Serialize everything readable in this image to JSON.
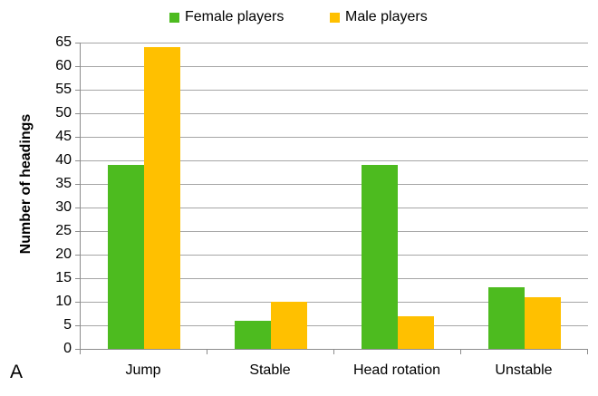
{
  "panel_label": "A",
  "chart_data": {
    "type": "bar",
    "title": "",
    "categories": [
      "Jump",
      "Stable",
      "Head rotation",
      "Unstable"
    ],
    "series": [
      {
        "name": "Female players",
        "color": "#4dbb1f",
        "values": [
          39,
          6,
          39,
          13
        ]
      },
      {
        "name": "Male players",
        "color": "#ffc000",
        "values": [
          64,
          10,
          7,
          11
        ]
      }
    ],
    "xlabel": "",
    "ylabel": "Number of headings",
    "ylim": [
      0,
      65
    ],
    "ytick_step": 5,
    "grid": true,
    "legend_position": "top"
  },
  "colors": {
    "background": "#ffffff",
    "gridline": "#a6a6a6",
    "axis": "#8c8c8c",
    "text": "#000000"
  }
}
